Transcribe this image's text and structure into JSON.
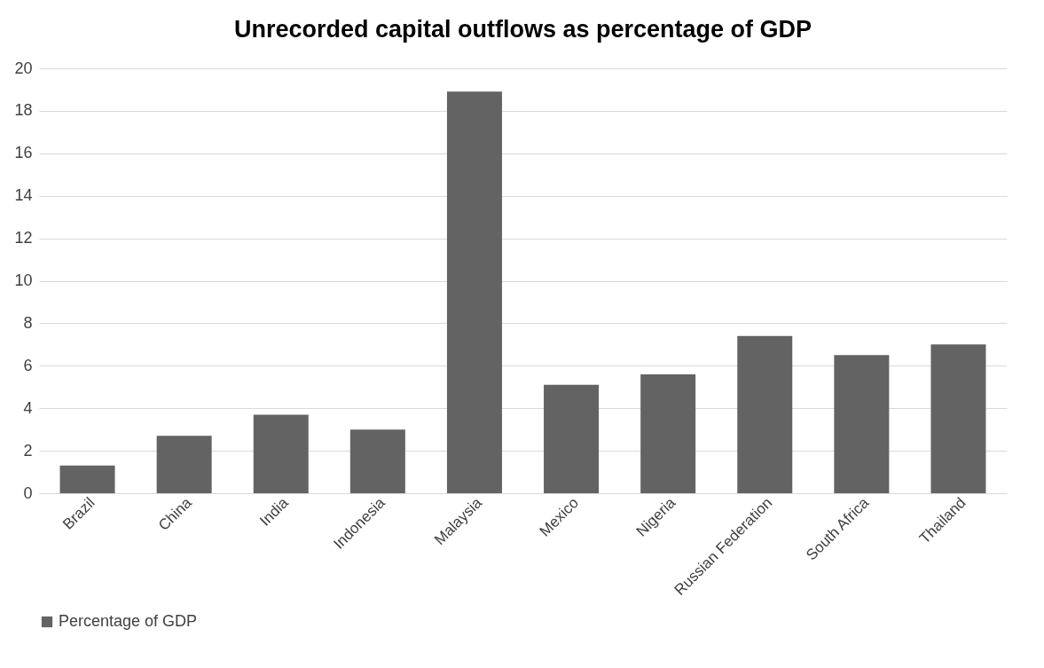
{
  "chart_data": {
    "type": "bar",
    "title": "Unrecorded capital outflows as percentage of GDP",
    "categories": [
      "Brazil",
      "China",
      "India",
      "Indonesia",
      "Malaysia",
      "Mexico",
      "Nigeria",
      "Russian Federation",
      "South Africa",
      "Thailand"
    ],
    "series": [
      {
        "name": "Percentage of GDP",
        "color": "#636363",
        "values": [
          1.3,
          2.7,
          3.7,
          3.0,
          18.9,
          5.1,
          5.6,
          7.4,
          6.5,
          7.0
        ]
      }
    ],
    "ylim": [
      0,
      20
    ],
    "yticks": [
      0,
      2,
      4,
      6,
      8,
      10,
      12,
      14,
      16,
      18,
      20
    ],
    "grid": "y",
    "legend": "bottom"
  }
}
